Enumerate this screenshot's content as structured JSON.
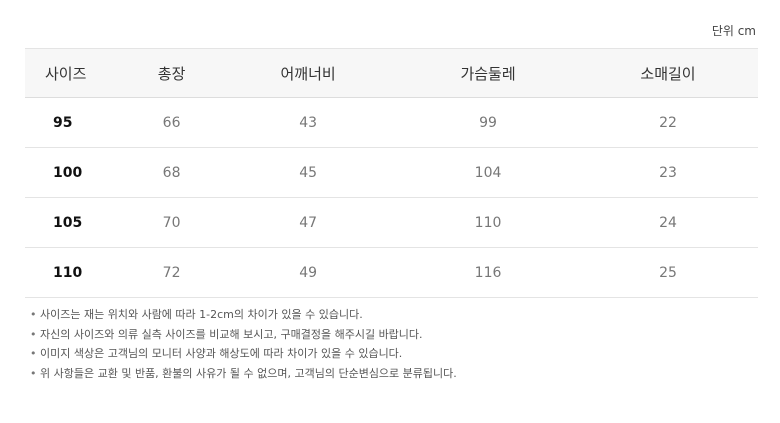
{
  "unit_label": "단위 cm",
  "table": {
    "headers": [
      "사이즈",
      "총장",
      "어깨너비",
      "가슴둘레",
      "소매길이"
    ],
    "rows": [
      [
        "95",
        "66",
        "43",
        "99",
        "22"
      ],
      [
        "100",
        "68",
        "45",
        "104",
        "23"
      ],
      [
        "105",
        "70",
        "47",
        "110",
        "24"
      ],
      [
        "110",
        "72",
        "49",
        "116",
        "25"
      ]
    ]
  },
  "notes": [
    "사이즈는 재는 위치와 사람에 따라 1-2cm의 차이가 있을 수 있습니다.",
    "자신의 사이즈와 의류 실측 사이즈를 비교해 보시고, 구매결정을 해주시길 바랍니다.",
    "이미지 색상은 고객님의 모니터 사양과 해상도에 따라 차이가 있을 수 있습니다.",
    "위 사항들은 교환 및 반품, 환불의 사유가 될 수 없으며, 고객님의 단순변심으로 분류됩니다."
  ]
}
